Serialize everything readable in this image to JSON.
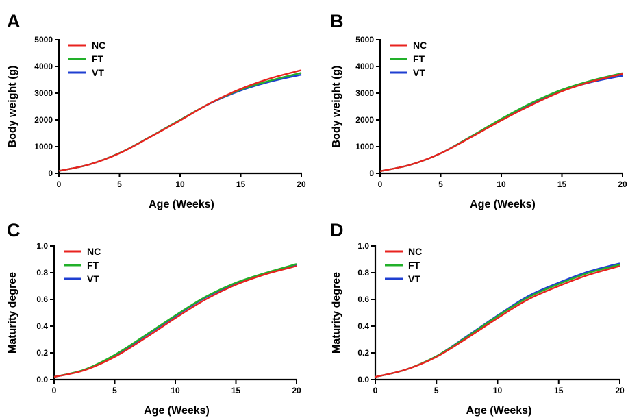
{
  "chart_data": [
    {
      "panel": "A",
      "type": "line",
      "xlabel": "Age (Weeks)",
      "ylabel": "Body weight (g)",
      "xlim": [
        0,
        20
      ],
      "ylim": [
        0,
        5000
      ],
      "xticks": [
        "0",
        "5",
        "10",
        "15",
        "20"
      ],
      "yticks": [
        "0",
        "1000",
        "2000",
        "3000",
        "4000",
        "5000"
      ],
      "legend_position": "top-left",
      "x": [
        0,
        2.5,
        5,
        7.5,
        10,
        12.5,
        15,
        17.5,
        20
      ],
      "series": [
        {
          "name": "NC",
          "color": "#e8231f",
          "values": [
            90,
            330,
            750,
            1350,
            1980,
            2630,
            3160,
            3560,
            3860
          ]
        },
        {
          "name": "FT",
          "color": "#22b02a",
          "values": [
            90,
            330,
            760,
            1360,
            2000,
            2630,
            3130,
            3480,
            3760
          ]
        },
        {
          "name": "VT",
          "color": "#1f3fd1",
          "values": [
            90,
            330,
            760,
            1360,
            2000,
            2620,
            3100,
            3440,
            3690
          ]
        }
      ]
    },
    {
      "panel": "B",
      "type": "line",
      "xlabel": "Age (Weeks)",
      "ylabel": "Body weight (g)",
      "xlim": [
        0,
        20
      ],
      "ylim": [
        0,
        5000
      ],
      "xticks": [
        "0",
        "5",
        "10",
        "15",
        "20"
      ],
      "yticks": [
        "0",
        "1000",
        "2000",
        "3000",
        "4000",
        "5000"
      ],
      "legend_position": "top-left",
      "x": [
        0,
        2.5,
        5,
        7.5,
        10,
        12.5,
        15,
        17.5,
        20
      ],
      "series": [
        {
          "name": "NC",
          "color": "#e8231f",
          "values": [
            80,
            320,
            750,
            1350,
            1980,
            2560,
            3070,
            3440,
            3720
          ]
        },
        {
          "name": "FT",
          "color": "#22b02a",
          "values": [
            80,
            320,
            750,
            1380,
            2040,
            2640,
            3130,
            3480,
            3750
          ]
        },
        {
          "name": "VT",
          "color": "#1f3fd1",
          "values": [
            80,
            320,
            750,
            1380,
            2020,
            2620,
            3100,
            3420,
            3650
          ]
        }
      ]
    },
    {
      "panel": "C",
      "type": "line",
      "xlabel": "Age (Weeks)",
      "ylabel": "Maturity degree",
      "xlim": [
        0,
        20
      ],
      "ylim": [
        0,
        1.0
      ],
      "xticks": [
        "0",
        "5",
        "10",
        "15",
        "20"
      ],
      "yticks": [
        "0.0",
        "0.2",
        "0.4",
        "0.6",
        "0.8",
        "1.0"
      ],
      "legend_position": "top-left",
      "x": [
        0,
        2.5,
        5,
        7.5,
        10,
        12.5,
        15,
        17.5,
        20
      ],
      "series": [
        {
          "name": "NC",
          "color": "#e8231f",
          "values": [
            0.02,
            0.07,
            0.17,
            0.31,
            0.46,
            0.6,
            0.71,
            0.79,
            0.85
          ]
        },
        {
          "name": "FT",
          "color": "#22b02a",
          "values": [
            0.02,
            0.075,
            0.185,
            0.33,
            0.48,
            0.62,
            0.725,
            0.8,
            0.865
          ]
        },
        {
          "name": "VT",
          "color": "#1f3fd1",
          "values": [
            0.02,
            0.073,
            0.18,
            0.325,
            0.475,
            0.615,
            0.72,
            0.795,
            0.86
          ]
        }
      ]
    },
    {
      "panel": "D",
      "type": "line",
      "xlabel": "Age (Weeks)",
      "ylabel": "Maturity degree",
      "xlim": [
        0,
        20
      ],
      "ylim": [
        0,
        1.0
      ],
      "xticks": [
        "0",
        "5",
        "10",
        "15",
        "20"
      ],
      "yticks": [
        "0.0",
        "0.2",
        "0.4",
        "0.6",
        "0.8",
        "1.0"
      ],
      "legend_position": "top-left",
      "x": [
        0,
        2.5,
        5,
        7.5,
        10,
        12.5,
        15,
        17.5,
        20
      ],
      "series": [
        {
          "name": "NC",
          "color": "#e8231f",
          "values": [
            0.02,
            0.075,
            0.17,
            0.31,
            0.46,
            0.6,
            0.7,
            0.785,
            0.85
          ]
        },
        {
          "name": "FT",
          "color": "#22b02a",
          "values": [
            0.02,
            0.075,
            0.175,
            0.32,
            0.475,
            0.615,
            0.715,
            0.8,
            0.86
          ]
        },
        {
          "name": "VT",
          "color": "#1f3fd1",
          "values": [
            0.02,
            0.075,
            0.175,
            0.325,
            0.48,
            0.625,
            0.725,
            0.81,
            0.87
          ]
        }
      ]
    }
  ]
}
